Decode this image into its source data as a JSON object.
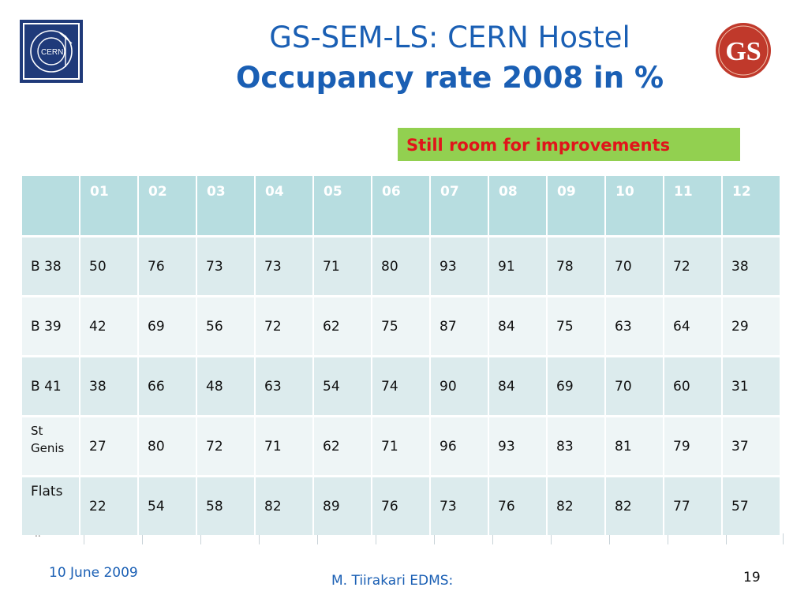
{
  "header": {
    "title_line1": "GS-SEM-LS: CERN Hostel",
    "title_line2": "Occupancy rate 2008 in %",
    "cern_logo_text": "CERN",
    "gs_logo_text": "GS"
  },
  "callout": {
    "text": "Still room for improvements",
    "bg_color": "#92d050",
    "text_color": "#e0151b"
  },
  "table": {
    "corner": "",
    "months": [
      "01",
      "02",
      "03",
      "04",
      "05",
      "06",
      "07",
      "08",
      "09",
      "10",
      "11",
      "12"
    ],
    "rows": [
      {
        "label": "B 38",
        "values": [
          "50",
          "76",
          "73",
          "73",
          "71",
          "80",
          "93",
          "91",
          "78",
          "70",
          "72",
          "38"
        ]
      },
      {
        "label": "B 39",
        "values": [
          "42",
          "69",
          "56",
          "72",
          "62",
          "75",
          "87",
          "84",
          "75",
          "63",
          "64",
          "29"
        ]
      },
      {
        "label": "B 41",
        "values": [
          "38",
          "66",
          "48",
          "63",
          "54",
          "74",
          "90",
          "84",
          "69",
          "70",
          "60",
          "31"
        ]
      },
      {
        "label": "St Genis",
        "values": [
          "27",
          "80",
          "72",
          "71",
          "62",
          "71",
          "96",
          "93",
          "83",
          "81",
          "79",
          "37"
        ]
      },
      {
        "label": "Flats",
        "values": [
          "22",
          "54",
          "58",
          "82",
          "89",
          "76",
          "73",
          "76",
          "82",
          "82",
          "77",
          "57"
        ]
      }
    ],
    "header_color": "#b7dde0"
  },
  "ghost_text": "..",
  "footer": {
    "date": "10 June 2009",
    "author": "M. Tiirakari EDMS:",
    "page": "19"
  }
}
